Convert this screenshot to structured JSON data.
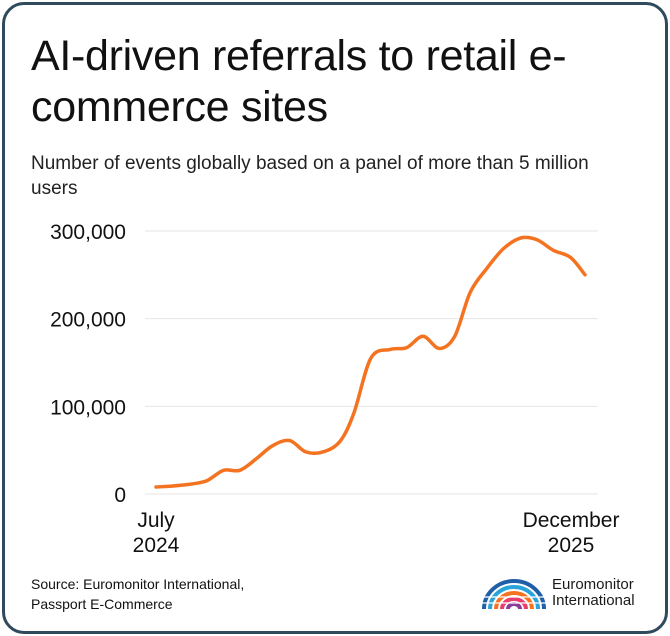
{
  "title": "AI-driven referrals to retail e-commerce sites",
  "subtitle": "Number of events globally based on a panel of more than 5 million users",
  "source": {
    "line1": "Source: Euromonitor International,",
    "line2": "Passport E-Commerce"
  },
  "logo": {
    "line1": "Euromonitor",
    "line2": "International"
  },
  "colors": {
    "line": "#f47321",
    "grid": "#e6e6e6",
    "border": "#2f4a5c"
  },
  "chart_data": {
    "type": "line",
    "title": "AI-driven referrals to retail e-commerce sites",
    "subtitle": "Number of events globally based on a panel of more than 5 million users",
    "xlabel": "",
    "ylabel": "",
    "x_start_label": [
      "July",
      "2024"
    ],
    "x_end_label": [
      "December",
      "2025"
    ],
    "y_ticks": [
      0,
      100000,
      200000,
      300000
    ],
    "y_tick_labels": [
      "0",
      "100,000",
      "200,000",
      "300,000"
    ],
    "ylim": [
      0,
      300000
    ],
    "grid": true,
    "legend": "none",
    "x": [
      "2024-07-01",
      "2024-07-20",
      "2024-08-10",
      "2024-09-01",
      "2024-09-22",
      "2024-10-12",
      "2024-11-01",
      "2024-11-21",
      "2024-12-12",
      "2025-01-01",
      "2025-01-22",
      "2025-02-12",
      "2025-03-01",
      "2025-03-22",
      "2025-04-15",
      "2025-05-05",
      "2025-05-25",
      "2025-06-14",
      "2025-07-03",
      "2025-07-22",
      "2025-08-12",
      "2025-09-01",
      "2025-09-22",
      "2025-10-12",
      "2025-11-01",
      "2025-11-22",
      "2025-12-10"
    ],
    "series": [
      {
        "values": [
          8000,
          9000,
          11000,
          15000,
          27000,
          27000,
          40000,
          55000,
          61000,
          48000,
          48000,
          60000,
          92000,
          155000,
          165000,
          167000,
          180000,
          166000,
          180000,
          230000,
          258000,
          280000,
          292000,
          290000,
          278000,
          270000,
          250000
        ]
      }
    ]
  }
}
